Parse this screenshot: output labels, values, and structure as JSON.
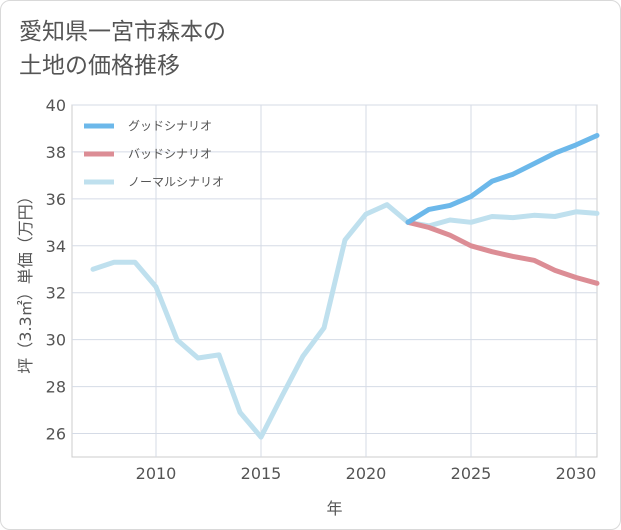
{
  "title": "愛知県一宮市森本の\n土地の価格推移",
  "chart_data": {
    "type": "line",
    "xlabel": "年",
    "ylabel": "坪（3.3㎡）単価（万円）",
    "xlim": [
      2006,
      2031
    ],
    "ylim": [
      25,
      40
    ],
    "xticks": [
      2010,
      2015,
      2020,
      2025,
      2030
    ],
    "yticks": [
      26,
      28,
      30,
      32,
      34,
      36,
      38,
      40
    ],
    "grid": true,
    "legend_position": "top-left",
    "series": [
      {
        "name": "グッドシナリオ",
        "color": "#6cb8ea",
        "x": [
          2022,
          2023,
          2024,
          2025,
          2026,
          2027,
          2028,
          2029,
          2030,
          2031
        ],
        "y": [
          35.0,
          35.55,
          35.72,
          36.1,
          36.75,
          37.05,
          37.5,
          37.95,
          38.3,
          38.7
        ]
      },
      {
        "name": "バッドシナリオ",
        "color": "#dc8d95",
        "x": [
          2022,
          2023,
          2024,
          2025,
          2026,
          2027,
          2028,
          2029,
          2030,
          2031
        ],
        "y": [
          35.0,
          34.78,
          34.45,
          34.0,
          33.75,
          33.55,
          33.38,
          32.95,
          32.65,
          32.4
        ]
      },
      {
        "name": "ノーマルシナリオ",
        "color": "#bfe0ee",
        "x": [
          2007,
          2008,
          2009,
          2010,
          2011,
          2012,
          2013,
          2014,
          2015,
          2016,
          2017,
          2018,
          2019,
          2020,
          2021,
          2022,
          2023,
          2024,
          2025,
          2026,
          2027,
          2028,
          2029,
          2030,
          2031
        ],
        "y": [
          33.0,
          33.3,
          33.3,
          32.25,
          30.0,
          29.22,
          29.35,
          26.9,
          25.85,
          27.6,
          29.3,
          30.5,
          34.25,
          35.35,
          35.75,
          35.0,
          34.85,
          35.1,
          35.0,
          35.25,
          35.2,
          35.3,
          35.25,
          35.45,
          35.38
        ]
      }
    ]
  }
}
